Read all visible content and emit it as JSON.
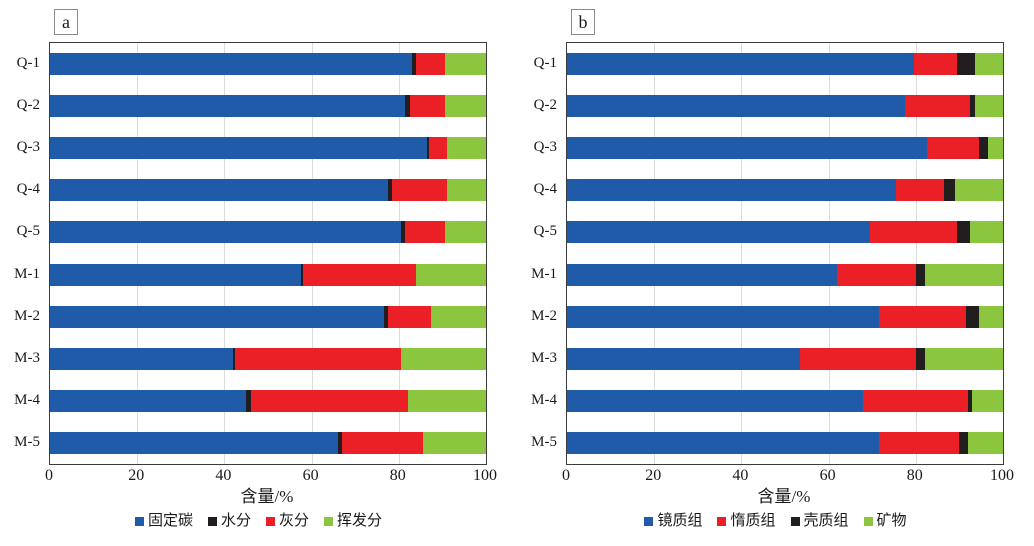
{
  "figure": {
    "background": "#ffffff",
    "panel_labels": [
      "a",
      "b"
    ]
  },
  "style": {
    "grid_color": "#dcdcdc",
    "plot_border_color": "#3c3c3c",
    "text_color": "#1a1a1a",
    "blue": "#1f5ba8",
    "black": "#221e1f",
    "red": "#eb2027",
    "green": "#8cc63e"
  },
  "chart_data": [
    {
      "type": "bar",
      "orientation": "horizontal",
      "stacked": true,
      "panel_label": "a",
      "categories": [
        "Q-1",
        "Q-2",
        "Q-3",
        "Q-4",
        "Q-5",
        "M-1",
        "M-2",
        "M-3",
        "M-4",
        "M-5"
      ],
      "xlabel": "含量/%",
      "xlim": [
        0,
        100
      ],
      "xticks": [
        0,
        20,
        40,
        60,
        80,
        100
      ],
      "grid": "vertical",
      "legend_position": "bottom",
      "series": [
        {
          "name": "固定碳",
          "color": "#1f5ba8",
          "values": [
            83,
            81.5,
            86.5,
            77.5,
            80.5,
            57.5,
            76.5,
            42,
            45,
            66
          ]
        },
        {
          "name": "水分",
          "color": "#221e1f",
          "values": [
            1,
            1,
            0.5,
            1,
            1,
            0.5,
            1,
            0.5,
            1,
            1
          ]
        },
        {
          "name": "灰分",
          "color": "#eb2027",
          "values": [
            6.5,
            8,
            4,
            12.5,
            9,
            26,
            10,
            38,
            36,
            18.5
          ]
        },
        {
          "name": "挥发分",
          "color": "#8cc63e",
          "values": [
            9.5,
            9.5,
            9,
            9,
            9.5,
            16,
            12.5,
            19.5,
            18,
            14.5
          ]
        }
      ]
    },
    {
      "type": "bar",
      "orientation": "horizontal",
      "stacked": true,
      "panel_label": "b",
      "categories": [
        "Q-1",
        "Q-2",
        "Q-3",
        "Q-4",
        "Q-5",
        "M-1",
        "M-2",
        "M-3",
        "M-4",
        "M-5"
      ],
      "xlabel": "含量/%",
      "xlim": [
        0,
        100
      ],
      "xticks": [
        0,
        20,
        40,
        60,
        80,
        100
      ],
      "grid": "vertical",
      "legend_position": "bottom",
      "series": [
        {
          "name": "镜质组",
          "color": "#1f5ba8",
          "values": [
            79.5,
            77.5,
            82.5,
            75.5,
            69.5,
            62,
            71.5,
            53.5,
            68,
            71.5
          ]
        },
        {
          "name": "惰质组",
          "color": "#eb2027",
          "values": [
            10,
            15,
            12,
            11,
            20,
            18,
            20,
            26.5,
            24,
            18.5
          ]
        },
        {
          "name": "壳质组",
          "color": "#221e1f",
          "values": [
            4,
            1,
            2,
            2.5,
            3,
            2,
            3,
            2,
            1,
            2
          ]
        },
        {
          "name": "矿物",
          "color": "#8cc63e",
          "values": [
            6.5,
            6.5,
            3.5,
            11,
            7.5,
            18,
            5.5,
            18,
            7,
            8
          ]
        }
      ]
    }
  ]
}
